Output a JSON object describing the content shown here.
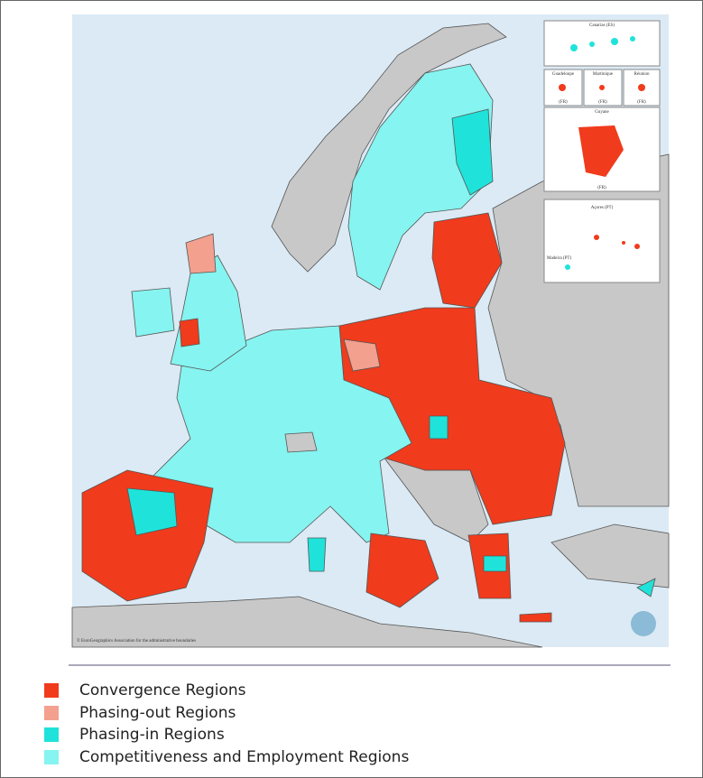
{
  "map": {
    "insets": {
      "canarias": "Canarias (ES)",
      "guadeloupe": "Guadeloupe",
      "martinique": "Martinique",
      "reunion": "Réunion",
      "guadeloupe_country": "(FR)",
      "martinique_country": "(FR)",
      "reunion_country": "(FR)",
      "guyane": "Guyane",
      "guyane_country": "(FR)",
      "acores": "Açores (PT)",
      "madeira": "Madeira (PT)"
    },
    "copyright": "© EuroGeographics Association for the administrative boundaries"
  },
  "legend": {
    "items": [
      {
        "label": "Convergence Regions",
        "color": "#f03b1c"
      },
      {
        "label": "Phasing-out Regions",
        "color": "#f3a08e"
      },
      {
        "label": "Phasing-in Regions",
        "color": "#1fe3da"
      },
      {
        "label": "Competitiveness and Employment Regions",
        "color": "#86f4f0"
      }
    ]
  }
}
